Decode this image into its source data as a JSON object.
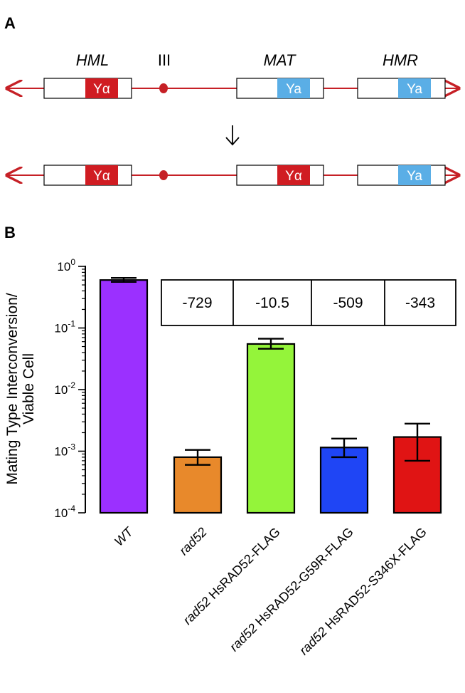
{
  "panel_a": {
    "label": "A",
    "loci": [
      "HML",
      "III",
      "MAT",
      "HMR"
    ],
    "before": [
      "Yα",
      "Ya",
      "Ya"
    ],
    "after": [
      "Yα",
      "Yα",
      "Ya"
    ],
    "colors": {
      "alpha": "#d01c22",
      "a": "#5aaee6",
      "line": "#c62026"
    }
  },
  "panel_b": {
    "label": "B"
  },
  "chart_data": {
    "type": "bar",
    "ylabel_lines": [
      "Mating Type Interconversion/",
      "Viable Cell"
    ],
    "yscale": "log",
    "ylim": [
      0.0001,
      1
    ],
    "y_ticks": [
      {
        "base": "10",
        "exp": "0"
      },
      {
        "base": "10",
        "exp": "-1"
      },
      {
        "base": "10",
        "exp": "-2"
      },
      {
        "base": "10",
        "exp": "-3"
      },
      {
        "base": "10",
        "exp": "-4"
      }
    ],
    "categories": [
      {
        "italic": "WT",
        "rest": ""
      },
      {
        "italic": "rad52",
        "rest": ""
      },
      {
        "italic": "rad52",
        "rest": " HsRAD52-FLAG"
      },
      {
        "italic": "rad52",
        "rest": " HsRAD52-G59R-FLAG"
      },
      {
        "italic": "rad52",
        "rest": " HsRAD52-S346X-FLAG"
      }
    ],
    "values": [
      0.6,
      0.0008,
      0.055,
      0.00115,
      0.0017
    ],
    "error_low": [
      0.56,
      0.0006,
      0.046,
      0.0008,
      0.0007
    ],
    "error_high": [
      0.65,
      0.00105,
      0.067,
      0.0016,
      0.0028
    ],
    "colors": [
      "#9b30ff",
      "#e8892b",
      "#94f43a",
      "#1f45f5",
      "#e01414"
    ],
    "fold_change": [
      "-729",
      "-10.5",
      "-509",
      "-343"
    ]
  }
}
